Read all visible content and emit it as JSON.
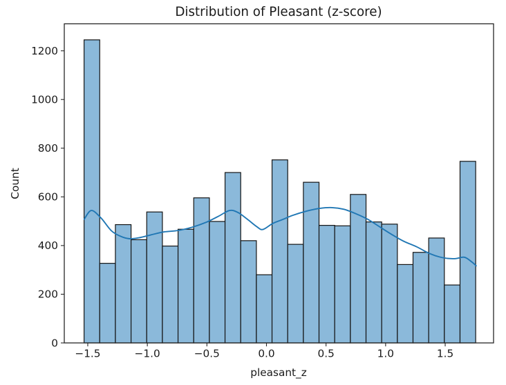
{
  "figure": {
    "title": "Distribution of Pleasant (z-score)"
  },
  "chart_data": {
    "type": "histogram",
    "title": "Distribution of Pleasant (z-score)",
    "xlabel": "pleasant_z",
    "ylabel": "Count",
    "xlim": [
      -1.697,
      1.906
    ],
    "ylim": [
      0,
      1311
    ],
    "grid": false,
    "legend": false,
    "bin_start": -1.531,
    "bin_width": 0.13148,
    "counts": [
      1245,
      327,
      486,
      424,
      538,
      398,
      467,
      596,
      499,
      700,
      420,
      280,
      752,
      405,
      660,
      483,
      481,
      610,
      497,
      488,
      322,
      372,
      431,
      238,
      746
    ],
    "x_ticks": {
      "values": [
        -1.5,
        -1.0,
        -0.5,
        0.0,
        0.5,
        1.0,
        1.5
      ],
      "labels": [
        "−1.5",
        "−1.0",
        "−0.5",
        "0.0",
        "0.5",
        "1.0",
        "1.5"
      ]
    },
    "y_ticks": {
      "values": [
        0,
        200,
        400,
        600,
        800,
        1000,
        1200
      ],
      "labels": [
        "0",
        "200",
        "400",
        "600",
        "800",
        "1000",
        "1200"
      ]
    },
    "kde": {
      "name": "kde-density-curve",
      "points": [
        [
          -1.53,
          508
        ],
        [
          -1.47,
          544
        ],
        [
          -1.39,
          514
        ],
        [
          -1.3,
          460
        ],
        [
          -1.22,
          437
        ],
        [
          -1.15,
          428
        ],
        [
          -1.07,
          432
        ],
        [
          -0.97,
          444
        ],
        [
          -0.86,
          456
        ],
        [
          -0.74,
          462
        ],
        [
          -0.62,
          476
        ],
        [
          -0.5,
          497
        ],
        [
          -0.4,
          521
        ],
        [
          -0.31,
          544
        ],
        [
          -0.24,
          536
        ],
        [
          -0.16,
          508
        ],
        [
          -0.08,
          477
        ],
        [
          -0.03,
          466
        ],
        [
          0.05,
          490
        ],
        [
          0.13,
          506
        ],
        [
          0.22,
          524
        ],
        [
          0.34,
          542
        ],
        [
          0.45,
          553
        ],
        [
          0.55,
          556
        ],
        [
          0.65,
          549
        ],
        [
          0.75,
          531
        ],
        [
          0.85,
          508
        ],
        [
          0.95,
          477
        ],
        [
          1.05,
          446
        ],
        [
          1.15,
          418
        ],
        [
          1.26,
          395
        ],
        [
          1.37,
          367
        ],
        [
          1.48,
          350
        ],
        [
          1.58,
          346
        ],
        [
          1.66,
          352
        ],
        [
          1.72,
          334
        ],
        [
          1.76,
          317
        ]
      ]
    },
    "colors": {
      "bar_fill": "#8bb9da",
      "bar_edge": "#141414",
      "kde_line": "#2077b4",
      "text": "#1a1a1a",
      "spine": "#262626"
    }
  }
}
